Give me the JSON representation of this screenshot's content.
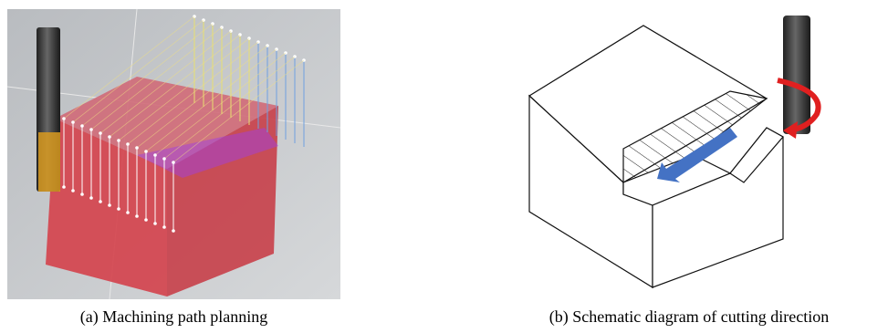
{
  "figure": {
    "panels": [
      {
        "caption": "(a) Machining path planning"
      },
      {
        "caption": "(b) Schematic diagram of cutting direction"
      }
    ]
  }
}
